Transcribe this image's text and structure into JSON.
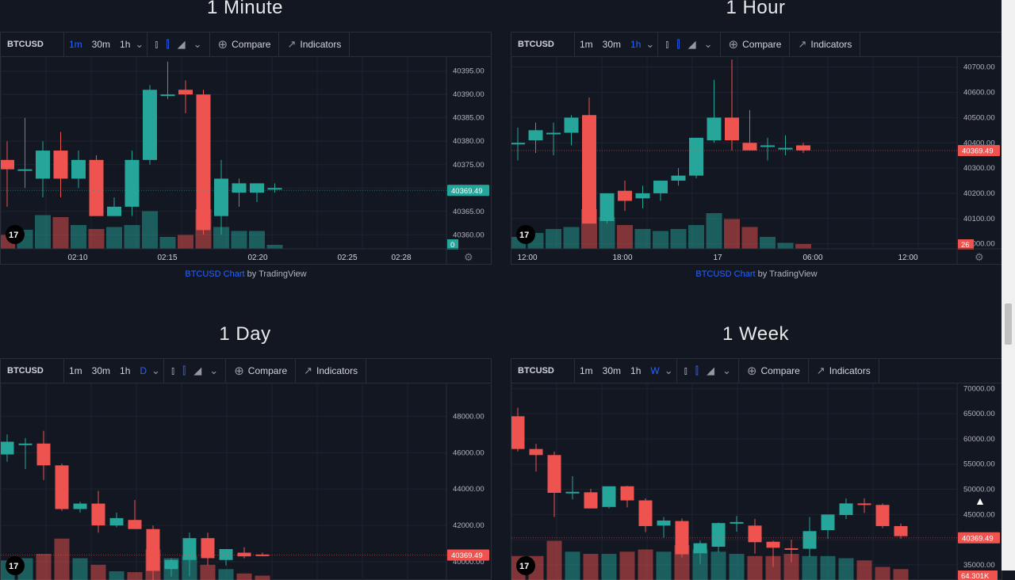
{
  "panels": [
    {
      "title": "1 Minute",
      "symbol": "BTCUSD",
      "intervals": [
        "1m",
        "30m",
        "1h"
      ],
      "active_interval": 0,
      "extra_interval": "",
      "compare_label": "Compare",
      "indicators_label": "Indicators",
      "price_labels": [
        "40395.00",
        "40390.00",
        "40385.00",
        "40380.00",
        "40375.00",
        "40370.00",
        "40365.00",
        "40360.00"
      ],
      "time_labels": [
        "02:10",
        "02:15",
        "02:20",
        "02:25",
        "02:28"
      ],
      "last_price": "40369.49",
      "last_price_color": "#26a69a",
      "volume_label": "0",
      "volume_label_color": "#26a69a",
      "credit_link": "BTCUSD Chart",
      "credit_by": "by TradingView"
    },
    {
      "title": "1 Hour",
      "symbol": "BTCUSD",
      "intervals": [
        "1m",
        "30m",
        "1h"
      ],
      "active_interval": 2,
      "extra_interval": "",
      "compare_label": "Compare",
      "indicators_label": "Indicators",
      "price_labels": [
        "40700.00",
        "40600.00",
        "40500.00",
        "40400.00",
        "40300.00",
        "40200.00",
        "40100.00",
        "40000.00"
      ],
      "time_labels": [
        "12:00",
        "18:00",
        "17",
        "06:00",
        "12:00"
      ],
      "last_price": "40369.49",
      "last_price_color": "#ef5350",
      "volume_label": "26",
      "volume_label_color": "#ef5350",
      "credit_link": "BTCUSD Chart",
      "credit_by": "by TradingView"
    },
    {
      "title": "1 Day",
      "symbol": "BTCUSD",
      "intervals": [
        "1m",
        "30m",
        "1h"
      ],
      "active_interval": -1,
      "extra_interval": "D",
      "compare_label": "Compare",
      "indicators_label": "Indicators",
      "price_labels": [
        "48000.00",
        "46000.00",
        "44000.00",
        "42000.00",
        "40000.00"
      ],
      "time_labels": [],
      "last_price": "40369.49",
      "last_price_color": "#ef5350",
      "volume_label": "",
      "volume_label_color": "#ef5350",
      "credit_link": "",
      "credit_by": ""
    },
    {
      "title": "1 Week",
      "symbol": "BTCUSD",
      "intervals": [
        "1m",
        "30m",
        "1h"
      ],
      "active_interval": -1,
      "extra_interval": "W",
      "compare_label": "Compare",
      "indicators_label": "Indicators",
      "price_labels": [
        "70000.00",
        "65000.00",
        "60000.00",
        "55000.00",
        "50000.00",
        "45000.00",
        "40000.00",
        "35000.00"
      ],
      "time_labels": [],
      "last_price": "40369.49",
      "last_price_color": "#ef5350",
      "volume_label": "64.301K",
      "volume_label_color": "#ef5350",
      "credit_link": "",
      "credit_by": ""
    }
  ],
  "candles": {
    "minute": {
      "price_range": [
        40357,
        40398
      ],
      "items": [
        {
          "o": 40376,
          "h": 40380,
          "l": 40366,
          "c": 40374
        },
        {
          "o": 40374,
          "h": 40385,
          "l": 40370,
          "c": 40374
        },
        {
          "o": 40372,
          "h": 40380,
          "l": 40368,
          "c": 40378
        },
        {
          "o": 40378,
          "h": 40382,
          "l": 40368,
          "c": 40372
        },
        {
          "o": 40372,
          "h": 40378,
          "l": 40370,
          "c": 40376
        },
        {
          "o": 40376,
          "h": 40377,
          "l": 40364,
          "c": 40364
        },
        {
          "o": 40364,
          "h": 40368,
          "l": 40364,
          "c": 40366
        },
        {
          "o": 40366,
          "h": 40378,
          "l": 40364,
          "c": 40376
        },
        {
          "o": 40376,
          "h": 40392,
          "l": 40375,
          "c": 40391
        },
        {
          "o": 40390,
          "h": 40397,
          "l": 40389,
          "c": 40390
        },
        {
          "o": 40391,
          "h": 40393,
          "l": 40386,
          "c": 40390
        },
        {
          "o": 40390,
          "h": 40391,
          "l": 40360,
          "c": 40361
        },
        {
          "o": 40364,
          "h": 40376,
          "l": 40360,
          "c": 40372
        },
        {
          "o": 40369,
          "h": 40372,
          "l": 40366,
          "c": 40371
        },
        {
          "o": 40369,
          "h": 40370,
          "l": 40367,
          "c": 40371
        },
        {
          "o": 40370,
          "h": 40371,
          "l": 40369,
          "c": 40370
        }
      ],
      "volumes": [
        0.35,
        0.48,
        0.85,
        0.8,
        0.6,
        0.5,
        0.55,
        0.6,
        0.95,
        0.3,
        0.35,
        1.0,
        0.55,
        0.45,
        0.45,
        0.1
      ]
    },
    "hour": {
      "price_range": [
        39980,
        40740
      ],
      "items": [
        {
          "o": 40400,
          "h": 40460,
          "l": 40330,
          "c": 40400
        },
        {
          "o": 40410,
          "h": 40480,
          "l": 40360,
          "c": 40450
        },
        {
          "o": 40440,
          "h": 40480,
          "l": 40350,
          "c": 40440
        },
        {
          "o": 40440,
          "h": 40510,
          "l": 40390,
          "c": 40500
        },
        {
          "o": 40510,
          "h": 40580,
          "l": 40080,
          "c": 40080
        },
        {
          "o": 40090,
          "h": 40200,
          "l": 40080,
          "c": 40200
        },
        {
          "o": 40210,
          "h": 40250,
          "l": 40130,
          "c": 40170
        },
        {
          "o": 40180,
          "h": 40230,
          "l": 40140,
          "c": 40200
        },
        {
          "o": 40200,
          "h": 40250,
          "l": 40170,
          "c": 40250
        },
        {
          "o": 40250,
          "h": 40300,
          "l": 40230,
          "c": 40270
        },
        {
          "o": 40270,
          "h": 40420,
          "l": 40260,
          "c": 40420
        },
        {
          "o": 40410,
          "h": 40650,
          "l": 40400,
          "c": 40500
        },
        {
          "o": 40500,
          "h": 40730,
          "l": 40370,
          "c": 40410
        },
        {
          "o": 40400,
          "h": 40530,
          "l": 40370,
          "c": 40370
        },
        {
          "o": 40390,
          "h": 40420,
          "l": 40330,
          "c": 40390
        },
        {
          "o": 40380,
          "h": 40430,
          "l": 40350,
          "c": 40380
        },
        {
          "o": 40390,
          "h": 40400,
          "l": 40360,
          "c": 40370
        }
      ],
      "volumes": [
        0.3,
        0.4,
        0.5,
        0.55,
        1.0,
        0.8,
        0.6,
        0.5,
        0.45,
        0.5,
        0.6,
        0.9,
        0.75,
        0.55,
        0.3,
        0.15,
        0.12
      ]
    },
    "day": {
      "price_range": [
        39000,
        49800
      ],
      "items": [
        {
          "o": 45900,
          "h": 47000,
          "l": 45500,
          "c": 46600
        },
        {
          "o": 46500,
          "h": 46800,
          "l": 45100,
          "c": 46500
        },
        {
          "o": 46500,
          "h": 47200,
          "l": 44500,
          "c": 45300
        },
        {
          "o": 45300,
          "h": 45400,
          "l": 42800,
          "c": 42900
        },
        {
          "o": 42900,
          "h": 43300,
          "l": 42700,
          "c": 43200
        },
        {
          "o": 43200,
          "h": 43900,
          "l": 41600,
          "c": 42000
        },
        {
          "o": 42000,
          "h": 42700,
          "l": 41900,
          "c": 42400
        },
        {
          "o": 42300,
          "h": 43400,
          "l": 41800,
          "c": 41800
        },
        {
          "o": 41800,
          "h": 42000,
          "l": 38500,
          "c": 39500
        },
        {
          "o": 39600,
          "h": 40200,
          "l": 39200,
          "c": 40100
        },
        {
          "o": 40100,
          "h": 41600,
          "l": 39200,
          "c": 41300
        },
        {
          "o": 41300,
          "h": 41600,
          "l": 39800,
          "c": 40200
        },
        {
          "o": 40100,
          "h": 40600,
          "l": 39800,
          "c": 40700
        },
        {
          "o": 40500,
          "h": 40800,
          "l": 40200,
          "c": 40300
        },
        {
          "o": 40400,
          "h": 40500,
          "l": 40300,
          "c": 40370
        }
      ],
      "volumes": [
        0.45,
        0.5,
        0.6,
        0.95,
        0.5,
        0.35,
        0.2,
        0.18,
        0.7,
        0.5,
        0.55,
        0.35,
        0.25,
        0.15,
        0.1
      ]
    },
    "week": {
      "price_range": [
        32000,
        71000
      ],
      "items": [
        {
          "o": 64500,
          "h": 66200,
          "l": 57500,
          "c": 58000
        },
        {
          "o": 58000,
          "h": 59000,
          "l": 53500,
          "c": 56800
        },
        {
          "o": 56800,
          "h": 57500,
          "l": 44500,
          "c": 49300
        },
        {
          "o": 49400,
          "h": 52600,
          "l": 48000,
          "c": 49500
        },
        {
          "o": 49400,
          "h": 50100,
          "l": 46300,
          "c": 46200
        },
        {
          "o": 46500,
          "h": 50600,
          "l": 46200,
          "c": 50600
        },
        {
          "o": 50600,
          "h": 50700,
          "l": 46400,
          "c": 47800
        },
        {
          "o": 47800,
          "h": 48200,
          "l": 41500,
          "c": 42700
        },
        {
          "o": 42800,
          "h": 44500,
          "l": 40400,
          "c": 43800
        },
        {
          "o": 43700,
          "h": 44200,
          "l": 36500,
          "c": 37100
        },
        {
          "o": 37300,
          "h": 39800,
          "l": 35200,
          "c": 39300
        },
        {
          "o": 38600,
          "h": 43400,
          "l": 37500,
          "c": 43300
        },
        {
          "o": 43200,
          "h": 44700,
          "l": 41600,
          "c": 43500
        },
        {
          "o": 42800,
          "h": 44100,
          "l": 37200,
          "c": 39500
        },
        {
          "o": 39600,
          "h": 39800,
          "l": 34600,
          "c": 38400
        },
        {
          "o": 38300,
          "h": 40000,
          "l": 35500,
          "c": 38200
        },
        {
          "o": 38200,
          "h": 44500,
          "l": 36600,
          "c": 41700
        },
        {
          "o": 41900,
          "h": 44300,
          "l": 40200,
          "c": 45000
        },
        {
          "o": 44900,
          "h": 48200,
          "l": 44100,
          "c": 47200
        },
        {
          "o": 47200,
          "h": 48200,
          "l": 45300,
          "c": 47000
        },
        {
          "o": 46900,
          "h": 47200,
          "l": 42300,
          "c": 42700
        },
        {
          "o": 42700,
          "h": 43200,
          "l": 40200,
          "c": 40700
        }
      ],
      "volumes": [
        0.55,
        0.55,
        0.9,
        0.65,
        0.6,
        0.6,
        0.65,
        0.7,
        0.65,
        0.8,
        0.7,
        0.65,
        0.6,
        0.55,
        0.55,
        0.6,
        0.55,
        0.55,
        0.5,
        0.45,
        0.3,
        0.25
      ]
    }
  },
  "colors": {
    "up": "#26a69a",
    "down": "#ef5350",
    "grid": "#1f2330",
    "bg": "#131722"
  }
}
